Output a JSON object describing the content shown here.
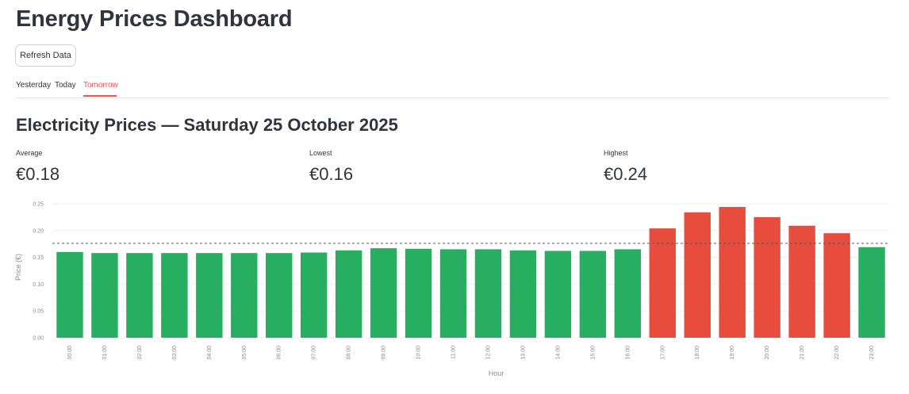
{
  "header": {
    "title": "Energy Prices Dashboard"
  },
  "toolbar": {
    "refresh_label": "Refresh Data"
  },
  "tabs": [
    {
      "label": "Yesterday",
      "active": false
    },
    {
      "label": "Today",
      "active": false
    },
    {
      "label": "Tomorrow",
      "active": true
    }
  ],
  "section": {
    "title": "Electricity Prices — Saturday 25 October 2025"
  },
  "metrics": [
    {
      "label": "Average",
      "value": "€0.18"
    },
    {
      "label": "Lowest",
      "value": "€0.16"
    },
    {
      "label": "Highest",
      "value": "€0.24"
    }
  ],
  "colors": {
    "accent": "#ff4b4b",
    "below_average": "#27ae60",
    "above_average": "#e74c3c"
  },
  "chart_data": {
    "type": "bar",
    "xlabel": "Hour",
    "ylabel": "Price (€)",
    "ylim": [
      0,
      0.25
    ],
    "yticks": [
      "0.00",
      "0.05",
      "0.10",
      "0.15",
      "0.20",
      "0.25"
    ],
    "grid": true,
    "reference_line": {
      "value": 0.176,
      "style": "dashed"
    },
    "categories": [
      "00:00",
      "01:00",
      "02:00",
      "03:00",
      "04:00",
      "05:00",
      "06:00",
      "07:00",
      "08:00",
      "09:00",
      "10:00",
      "11:00",
      "12:00",
      "13:00",
      "14:00",
      "15:00",
      "16:00",
      "17:00",
      "18:00",
      "19:00",
      "20:00",
      "21:00",
      "22:00",
      "23:00"
    ],
    "values": [
      0.16,
      0.158,
      0.158,
      0.158,
      0.158,
      0.158,
      0.158,
      0.159,
      0.163,
      0.167,
      0.166,
      0.165,
      0.165,
      0.163,
      0.162,
      0.162,
      0.165,
      0.204,
      0.234,
      0.244,
      0.225,
      0.209,
      0.195,
      0.169
    ]
  }
}
